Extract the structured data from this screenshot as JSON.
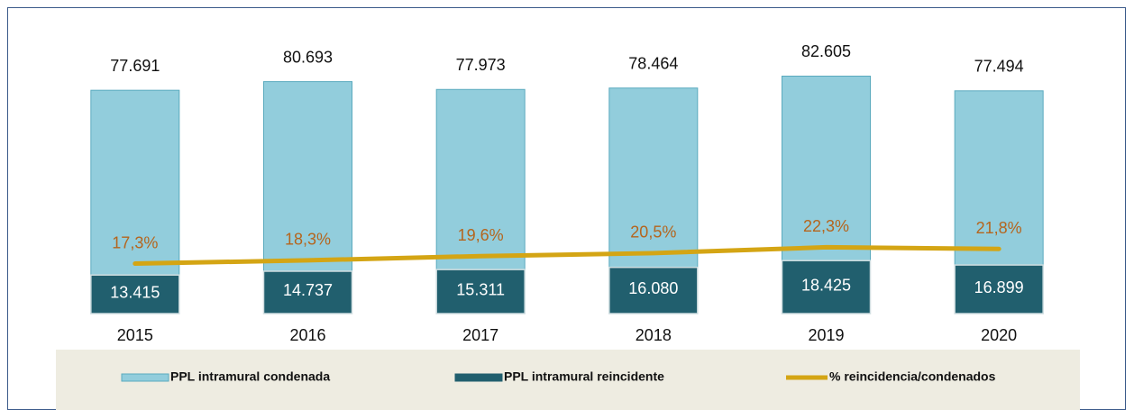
{
  "chart_data": {
    "type": "bar",
    "categories": [
      "2015",
      "2016",
      "2017",
      "2018",
      "2019",
      "2020"
    ],
    "ylim": [
      0,
      100000
    ],
    "y2lim": [
      2,
      90
    ],
    "series": [
      {
        "name": "PPL intramural condenada",
        "color": "#92cddc",
        "values": [
          77691,
          80693,
          77973,
          78464,
          82605,
          77494
        ],
        "value_labels": [
          "77.691",
          "80.693",
          "77.973",
          "78.464",
          "82.605",
          "77.494"
        ]
      },
      {
        "name": "PPL intramural reincidente",
        "color": "#215f6e",
        "values": [
          13415,
          14737,
          15311,
          16080,
          18425,
          16899
        ],
        "value_labels": [
          "13.415",
          "14.737",
          "15.311",
          "16.080",
          "18.425",
          "16.899"
        ]
      },
      {
        "name": "% reincidencia/condenados",
        "type": "line",
        "axis": "y2",
        "color": "#d4a514",
        "values": [
          17.3,
          18.3,
          19.6,
          20.5,
          22.3,
          21.8
        ],
        "value_labels": [
          "17,3%",
          "18,3%",
          "19,6%",
          "20,5%",
          "22,3%",
          "21,8%"
        ]
      }
    ]
  }
}
